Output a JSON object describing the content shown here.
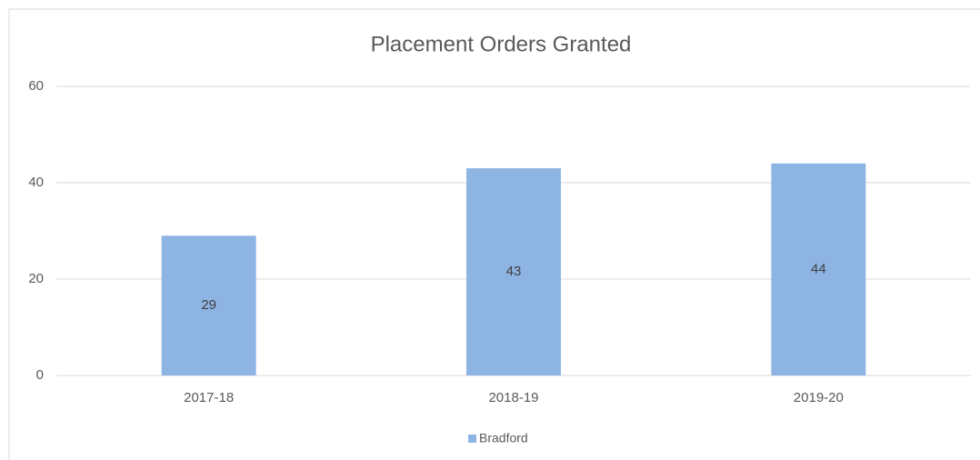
{
  "chart_data": {
    "type": "bar",
    "title": "Placement Orders Granted",
    "categories": [
      "2017-18",
      "2018-19",
      "2019-20"
    ],
    "series": [
      {
        "name": "Bradford",
        "color": "#8eb4e3",
        "values": [
          29,
          43,
          44
        ]
      }
    ],
    "ylim": [
      0,
      60
    ],
    "yticks": [
      0,
      20,
      40,
      60
    ],
    "grid": true,
    "legend": "bottom",
    "data_labels": true
  }
}
